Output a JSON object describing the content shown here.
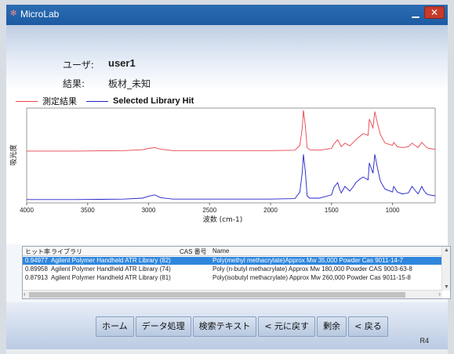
{
  "window": {
    "title": "MicroLab"
  },
  "header": {
    "user_label": "ユーザ:",
    "user_value": "user1",
    "result_label": "結果:",
    "result_value": "板材_未知"
  },
  "legend": {
    "measured": "測定結果",
    "library": "Selected Library Hit"
  },
  "colors": {
    "measured": "#e8434b",
    "library": "#2020c8",
    "accent": "#2f86dc"
  },
  "chart_data": {
    "type": "line",
    "xlabel": "波数 (cm-1)",
    "ylabel": "吸光度",
    "xlim": [
      4000,
      650
    ],
    "x_reversed": true,
    "x_ticks": [
      4000,
      3500,
      3000,
      2500,
      2000,
      1500,
      1000
    ],
    "series": [
      {
        "name": "測定結果",
        "x": [
          4000,
          3600,
          3200,
          3050,
          3000,
          2950,
          2900,
          2800,
          2400,
          2000,
          1800,
          1760,
          1740,
          1730,
          1715,
          1700,
          1680,
          1600,
          1500,
          1480,
          1450,
          1435,
          1420,
          1390,
          1350,
          1320,
          1300,
          1270,
          1240,
          1200,
          1190,
          1160,
          1145,
          1120,
          1100,
          1080,
          1060,
          1000,
          990,
          960,
          920,
          870,
          840,
          810,
          790,
          760,
          740,
          720,
          700,
          650
        ],
        "y": [
          0.02,
          0.02,
          0.03,
          0.05,
          0.08,
          0.1,
          0.06,
          0.03,
          0.03,
          0.03,
          0.04,
          0.15,
          0.55,
          0.95,
          0.6,
          0.1,
          0.05,
          0.04,
          0.08,
          0.18,
          0.28,
          0.2,
          0.12,
          0.2,
          0.14,
          0.22,
          0.28,
          0.35,
          0.42,
          0.38,
          0.75,
          0.55,
          0.92,
          0.62,
          0.4,
          0.3,
          0.2,
          0.15,
          0.22,
          0.12,
          0.1,
          0.12,
          0.2,
          0.14,
          0.1,
          0.22,
          0.16,
          0.1,
          0.08,
          0.06
        ]
      },
      {
        "name": "Selected Library Hit",
        "x": [
          4000,
          3600,
          3200,
          3050,
          3000,
          2950,
          2900,
          2800,
          2400,
          2000,
          1800,
          1760,
          1740,
          1730,
          1715,
          1700,
          1680,
          1600,
          1500,
          1480,
          1450,
          1435,
          1420,
          1390,
          1350,
          1320,
          1300,
          1270,
          1240,
          1200,
          1190,
          1160,
          1145,
          1120,
          1100,
          1080,
          1060,
          1000,
          990,
          960,
          920,
          870,
          840,
          810,
          790,
          760,
          740,
          720,
          700,
          650
        ],
        "y": [
          0.02,
          0.02,
          0.03,
          0.05,
          0.09,
          0.12,
          0.06,
          0.03,
          0.03,
          0.03,
          0.04,
          0.18,
          0.6,
          0.98,
          0.62,
          0.1,
          0.05,
          0.05,
          0.12,
          0.28,
          0.38,
          0.25,
          0.16,
          0.3,
          0.2,
          0.3,
          0.38,
          0.45,
          0.5,
          0.44,
          0.8,
          0.58,
          0.98,
          0.65,
          0.42,
          0.32,
          0.24,
          0.18,
          0.3,
          0.18,
          0.14,
          0.16,
          0.3,
          0.2,
          0.14,
          0.3,
          0.2,
          0.14,
          0.12,
          0.1
        ]
      }
    ]
  },
  "table": {
    "headers": {
      "hit_rate": "ヒット率",
      "library": "ライブラリ",
      "cas": "CAS 番号",
      "name": "Name"
    },
    "rows": [
      {
        "hit": "0.94977",
        "library": "Agilent Polymer Handheld ATR Library (82)",
        "cas": "",
        "name": "Poly(methyl methacrylate)Approx Mw 35,000 Powder Cas 9011-14-7"
      },
      {
        "hit": "0.89958",
        "library": "Agilent Polymer Handheld ATR Library (74)",
        "cas": "",
        "name": "Poly (n-butyl methacrylate) Approx Mw 180,000 Powder CAS 9003-63-8"
      },
      {
        "hit": "0.87913",
        "library": "Agilent Polymer Handheld ATR Library (81)",
        "cas": "",
        "name": "Poly(isobutyl methacrylate) Approx Mw 260,000 Powder Cas 9011-15-8"
      }
    ]
  },
  "buttons": {
    "home": "ホーム",
    "data_processing": "データ処理",
    "search_text": "検索テキスト",
    "undo": "< 元に戻す",
    "residual": "剰余",
    "back": "< 戻る"
  },
  "revision": "R4"
}
